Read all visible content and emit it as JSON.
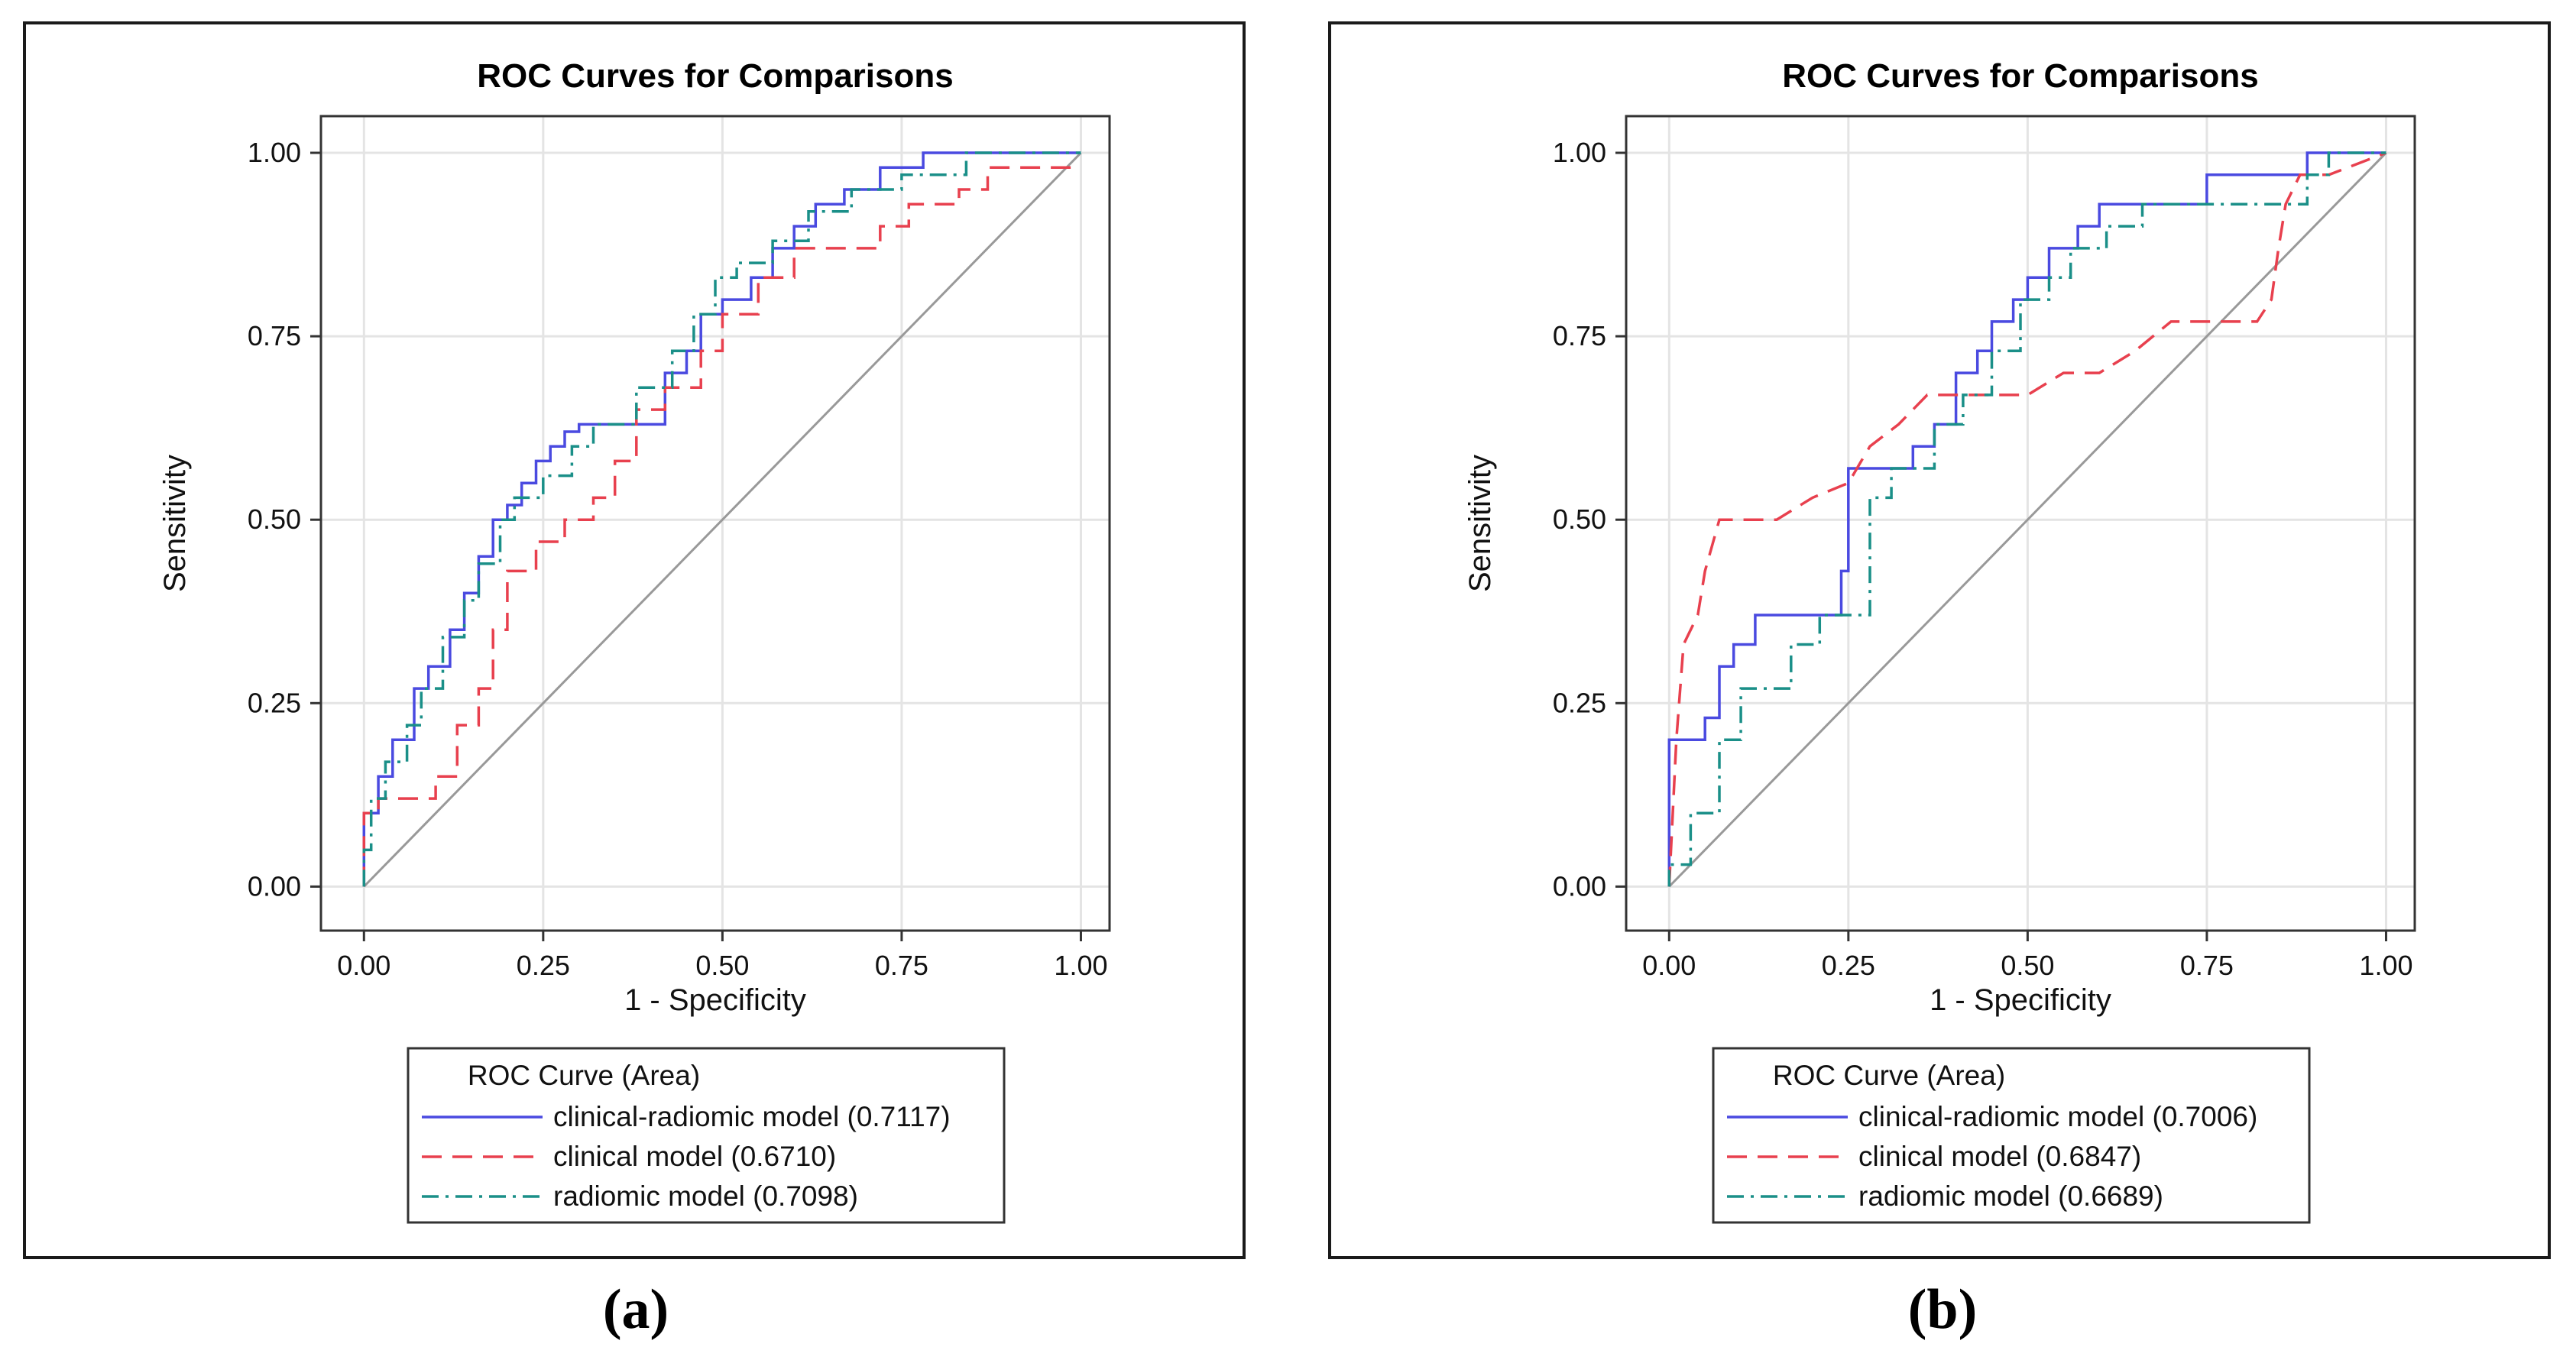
{
  "panels": [
    {
      "id": "a",
      "label": "(a)",
      "legend_title": "ROC Curve (Area)",
      "chart_data": {
        "type": "line",
        "title": "ROC Curves for Comparisons",
        "xlabel": "1 - Specificity",
        "ylabel": "Sensitivity",
        "xlim": [
          -0.06,
          1.04
        ],
        "ylim": [
          -0.06,
          1.05
        ],
        "xticks": [
          0.0,
          0.25,
          0.5,
          0.75,
          1.0
        ],
        "yticks": [
          0.0,
          0.25,
          0.5,
          0.75,
          1.0
        ],
        "xtick_labels": [
          "0.00",
          "0.25",
          "0.50",
          "0.75",
          "1.00"
        ],
        "ytick_labels": [
          "0.00",
          "0.25",
          "0.50",
          "0.75",
          "1.00"
        ],
        "grid": true,
        "reference_line": {
          "x": [
            0,
            1
          ],
          "y": [
            0,
            1
          ],
          "color": "#999999"
        },
        "series": [
          {
            "name": "clinical-radiomic model",
            "legend_label": "clinical-radiomic model  (0.7117)",
            "area": "0.7117",
            "color": "#4a4ae0",
            "dash": "solid",
            "x": [
              0,
              0,
              0.02,
              0.02,
              0.04,
              0.04,
              0.07,
              0.07,
              0.09,
              0.09,
              0.12,
              0.12,
              0.14,
              0.14,
              0.16,
              0.16,
              0.18,
              0.18,
              0.2,
              0.2,
              0.22,
              0.22,
              0.24,
              0.24,
              0.26,
              0.26,
              0.28,
              0.28,
              0.3,
              0.3,
              0.42,
              0.42,
              0.45,
              0.45,
              0.47,
              0.47,
              0.5,
              0.5,
              0.54,
              0.54,
              0.57,
              0.57,
              0.6,
              0.6,
              0.63,
              0.63,
              0.67,
              0.67,
              0.72,
              0.72,
              0.78,
              0.78,
              0.86,
              0.86,
              1.0
            ],
            "y": [
              0,
              0.1,
              0.1,
              0.15,
              0.15,
              0.2,
              0.2,
              0.27,
              0.27,
              0.3,
              0.3,
              0.35,
              0.35,
              0.4,
              0.4,
              0.45,
              0.45,
              0.5,
              0.5,
              0.52,
              0.52,
              0.55,
              0.55,
              0.58,
              0.58,
              0.6,
              0.6,
              0.62,
              0.62,
              0.63,
              0.63,
              0.7,
              0.7,
              0.73,
              0.73,
              0.78,
              0.78,
              0.8,
              0.8,
              0.83,
              0.83,
              0.87,
              0.87,
              0.9,
              0.9,
              0.93,
              0.93,
              0.95,
              0.95,
              0.98,
              0.98,
              1.0,
              1.0,
              1.0,
              1.0
            ]
          },
          {
            "name": "clinical model",
            "legend_label": "clinical model  (0.6710)",
            "area": "0.6710",
            "color": "#e8404e",
            "dash": "long-dash",
            "x": [
              0,
              0,
              0.02,
              0.02,
              0.1,
              0.1,
              0.13,
              0.13,
              0.16,
              0.16,
              0.18,
              0.18,
              0.2,
              0.2,
              0.24,
              0.24,
              0.28,
              0.28,
              0.32,
              0.32,
              0.35,
              0.35,
              0.38,
              0.38,
              0.42,
              0.42,
              0.47,
              0.47,
              0.5,
              0.5,
              0.55,
              0.55,
              0.6,
              0.6,
              0.72,
              0.72,
              0.76,
              0.76,
              0.83,
              0.83,
              0.87,
              0.87,
              1.0
            ],
            "y": [
              0,
              0.1,
              0.1,
              0.12,
              0.12,
              0.15,
              0.15,
              0.22,
              0.22,
              0.27,
              0.27,
              0.35,
              0.35,
              0.43,
              0.43,
              0.47,
              0.47,
              0.5,
              0.5,
              0.53,
              0.53,
              0.58,
              0.58,
              0.65,
              0.65,
              0.68,
              0.68,
              0.73,
              0.73,
              0.78,
              0.78,
              0.83,
              0.83,
              0.87,
              0.87,
              0.9,
              0.9,
              0.93,
              0.93,
              0.95,
              0.95,
              0.98,
              0.98
            ]
          },
          {
            "name": "radiomic model",
            "legend_label": "radiomic model  (0.7098)",
            "area": "0.7098",
            "color": "#1a8f88",
            "dash": "dash-dot",
            "x": [
              0,
              0,
              0.01,
              0.01,
              0.03,
              0.03,
              0.06,
              0.06,
              0.08,
              0.08,
              0.11,
              0.11,
              0.14,
              0.14,
              0.16,
              0.16,
              0.19,
              0.19,
              0.21,
              0.21,
              0.25,
              0.25,
              0.29,
              0.29,
              0.32,
              0.32,
              0.38,
              0.38,
              0.43,
              0.43,
              0.46,
              0.46,
              0.49,
              0.49,
              0.52,
              0.52,
              0.57,
              0.57,
              0.62,
              0.62,
              0.68,
              0.68,
              0.75,
              0.75,
              0.84,
              0.84,
              1.0
            ],
            "y": [
              0,
              0.05,
              0.05,
              0.12,
              0.12,
              0.17,
              0.17,
              0.22,
              0.22,
              0.27,
              0.27,
              0.34,
              0.34,
              0.39,
              0.39,
              0.44,
              0.44,
              0.5,
              0.5,
              0.53,
              0.53,
              0.56,
              0.56,
              0.6,
              0.6,
              0.63,
              0.63,
              0.68,
              0.68,
              0.73,
              0.73,
              0.78,
              0.78,
              0.83,
              0.83,
              0.85,
              0.85,
              0.88,
              0.88,
              0.92,
              0.92,
              0.95,
              0.95,
              0.97,
              0.97,
              1.0,
              1.0
            ]
          }
        ]
      }
    },
    {
      "id": "b",
      "label": "(b)",
      "legend_title": "ROC Curve (Area)",
      "chart_data": {
        "type": "line",
        "title": "ROC Curves for Comparisons",
        "xlabel": "1 - Specificity",
        "ylabel": "Sensitivity",
        "xlim": [
          -0.06,
          1.04
        ],
        "ylim": [
          -0.06,
          1.05
        ],
        "xticks": [
          0.0,
          0.25,
          0.5,
          0.75,
          1.0
        ],
        "yticks": [
          0.0,
          0.25,
          0.5,
          0.75,
          1.0
        ],
        "xtick_labels": [
          "0.00",
          "0.25",
          "0.50",
          "0.75",
          "1.00"
        ],
        "ytick_labels": [
          "0.00",
          "0.25",
          "0.50",
          "0.75",
          "1.00"
        ],
        "grid": true,
        "reference_line": {
          "x": [
            0,
            1
          ],
          "y": [
            0,
            1
          ],
          "color": "#999999"
        },
        "series": [
          {
            "name": "clinical-radiomic model",
            "legend_label": "clinical-radiomic model  (0.7006)",
            "area": "0.7006",
            "color": "#4a4ae0",
            "dash": "solid",
            "x": [
              0,
              0,
              0.05,
              0.05,
              0.07,
              0.07,
              0.09,
              0.09,
              0.12,
              0.12,
              0.24,
              0.24,
              0.25,
              0.25,
              0.34,
              0.34,
              0.37,
              0.37,
              0.4,
              0.4,
              0.43,
              0.43,
              0.45,
              0.45,
              0.48,
              0.48,
              0.5,
              0.5,
              0.53,
              0.53,
              0.57,
              0.57,
              0.6,
              0.6,
              0.75,
              0.75,
              0.89,
              0.89,
              0.91,
              0.91,
              1.0
            ],
            "y": [
              0,
              0.2,
              0.2,
              0.23,
              0.23,
              0.3,
              0.3,
              0.33,
              0.33,
              0.37,
              0.37,
              0.43,
              0.43,
              0.57,
              0.57,
              0.6,
              0.6,
              0.63,
              0.63,
              0.7,
              0.7,
              0.73,
              0.73,
              0.77,
              0.77,
              0.8,
              0.8,
              0.83,
              0.83,
              0.87,
              0.87,
              0.9,
              0.9,
              0.93,
              0.93,
              0.97,
              0.97,
              1.0,
              1.0,
              1.0,
              1.0
            ]
          },
          {
            "name": "clinical model",
            "legend_label": "clinical model  (0.6847)",
            "area": "0.6847",
            "color": "#e8404e",
            "dash": "long-dash",
            "x": [
              0,
              0.01,
              0.02,
              0.04,
              0.05,
              0.07,
              0.1,
              0.15,
              0.2,
              0.25,
              0.28,
              0.32,
              0.36,
              0.45,
              0.48,
              0.5,
              0.55,
              0.6,
              0.65,
              0.7,
              0.75,
              0.8,
              0.82,
              0.84,
              0.85,
              0.86,
              0.88,
              0.92,
              1.0
            ],
            "y": [
              0,
              0.2,
              0.33,
              0.37,
              0.43,
              0.5,
              0.5,
              0.5,
              0.53,
              0.55,
              0.6,
              0.63,
              0.67,
              0.67,
              0.67,
              0.67,
              0.7,
              0.7,
              0.73,
              0.77,
              0.77,
              0.77,
              0.77,
              0.8,
              0.87,
              0.93,
              0.97,
              0.97,
              1.0
            ]
          },
          {
            "name": "radiomic model",
            "legend_label": "radiomic model  (0.6689)",
            "area": "0.6689",
            "color": "#1a8f88",
            "dash": "dash-dot",
            "x": [
              0,
              0,
              0.03,
              0.03,
              0.07,
              0.07,
              0.1,
              0.1,
              0.17,
              0.17,
              0.21,
              0.21,
              0.28,
              0.28,
              0.31,
              0.31,
              0.37,
              0.37,
              0.41,
              0.41,
              0.45,
              0.45,
              0.49,
              0.49,
              0.53,
              0.53,
              0.56,
              0.56,
              0.61,
              0.61,
              0.66,
              0.66,
              0.75,
              0.75,
              0.89,
              0.89,
              0.92,
              0.92,
              1.0
            ],
            "y": [
              0,
              0.03,
              0.03,
              0.1,
              0.1,
              0.2,
              0.2,
              0.27,
              0.27,
              0.33,
              0.33,
              0.37,
              0.37,
              0.53,
              0.53,
              0.57,
              0.57,
              0.63,
              0.63,
              0.67,
              0.67,
              0.73,
              0.73,
              0.8,
              0.8,
              0.83,
              0.83,
              0.87,
              0.87,
              0.9,
              0.9,
              0.93,
              0.93,
              0.93,
              0.93,
              0.97,
              0.97,
              1.0,
              1.0
            ]
          }
        ]
      }
    }
  ]
}
